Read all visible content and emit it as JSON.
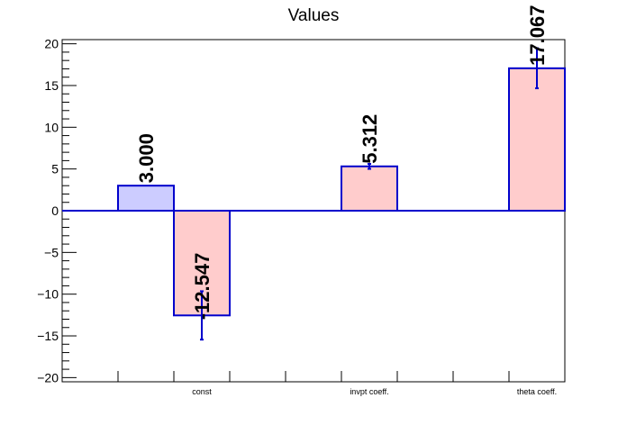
{
  "chart_data": {
    "type": "bar",
    "title": "Values",
    "categories": [
      "const",
      "invpt coeff.",
      "theta coeff."
    ],
    "ylim": [
      -20.5,
      20.5
    ],
    "yticks": [
      -20,
      -15,
      -10,
      -5,
      0,
      5,
      10,
      15,
      20
    ],
    "ytick_labels": [
      "−20",
      "−15",
      "−10",
      "−5",
      "0",
      "5",
      "10",
      "15",
      "20"
    ],
    "grid": false,
    "legend": "none",
    "series": [
      {
        "color": "#ccccff",
        "values": [
          3.0,
          null,
          null
        ],
        "errors": [
          0,
          null,
          null
        ],
        "labels": [
          "3.000",
          "",
          ""
        ]
      },
      {
        "color": "#ffcccc",
        "values": [
          -12.547,
          5.312,
          17.067
        ],
        "errors": [
          2.9,
          0.3,
          2.4
        ],
        "labels": [
          "-12.547",
          "5.312",
          "17.067"
        ]
      }
    ],
    "edge_color": "#0000cc"
  }
}
